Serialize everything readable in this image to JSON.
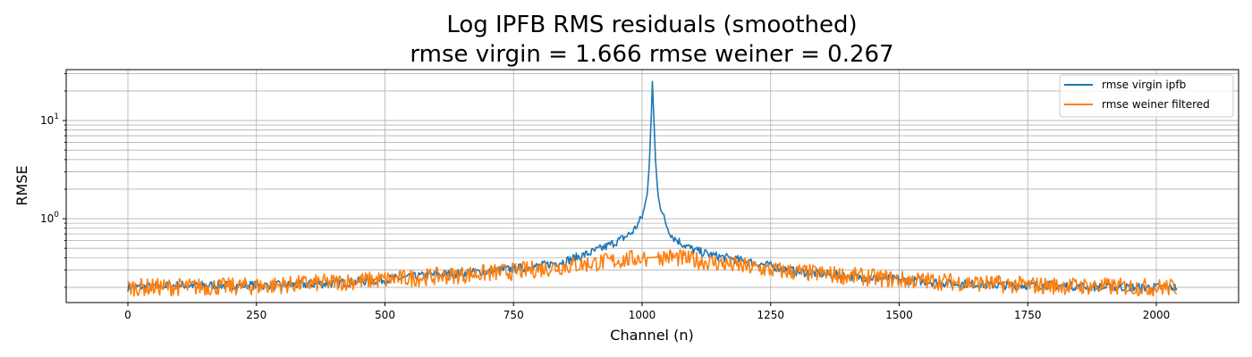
{
  "chart_data": {
    "type": "line",
    "title": "Log IPFB RMS residuals (smoothed)",
    "subtitle": "rmse virgin = 1.666 rmse weiner = 0.267",
    "xlabel": "Channel (n)",
    "ylabel": "RMSE",
    "xlim": [
      -120,
      2160
    ],
    "ylim": [
      0.14,
      33
    ],
    "yscale": "log",
    "grid": true,
    "legend_position": "top-right",
    "x_ticks": [
      0,
      250,
      500,
      750,
      1000,
      1250,
      1500,
      1750,
      2000
    ],
    "x_tick_labels": [
      "0",
      "250",
      "500",
      "750",
      "1000",
      "1250",
      "1500",
      "1750",
      "2000"
    ],
    "y_ticks": [
      1,
      10
    ],
    "y_tick_labels": [
      {
        "base": "10",
        "exp": "0"
      },
      {
        "base": "10",
        "exp": "1"
      }
    ],
    "series": [
      {
        "name": "rmse virgin ipfb",
        "color": "#1f77b4",
        "x": [
          0,
          100,
          200,
          300,
          400,
          500,
          600,
          700,
          800,
          850,
          900,
          930,
          960,
          980,
          990,
          1000,
          1005,
          1010,
          1014,
          1018,
          1020,
          1022,
          1026,
          1030,
          1035,
          1040,
          1050,
          1060,
          1080,
          1100,
          1140,
          1200,
          1250,
          1300,
          1400,
          1500,
          1600,
          1700,
          1800,
          1900,
          2000,
          2040
        ],
        "y": [
          0.2,
          0.21,
          0.21,
          0.21,
          0.22,
          0.24,
          0.27,
          0.29,
          0.33,
          0.37,
          0.45,
          0.52,
          0.62,
          0.72,
          0.85,
          1.05,
          1.3,
          1.8,
          3.5,
          12,
          25,
          14,
          4,
          2,
          1.4,
          1.1,
          0.8,
          0.65,
          0.55,
          0.48,
          0.42,
          0.37,
          0.33,
          0.29,
          0.26,
          0.24,
          0.22,
          0.21,
          0.21,
          0.2,
          0.2,
          0.2
        ]
      },
      {
        "name": "rmse weiner filtered",
        "color": "#ff7f0e",
        "x": [
          0,
          250,
          500,
          750,
          900,
          1000,
          1050,
          1100,
          1250,
          1500,
          1750,
          2000,
          2040
        ],
        "y": [
          0.2,
          0.205,
          0.24,
          0.29,
          0.35,
          0.4,
          0.41,
          0.38,
          0.3,
          0.24,
          0.21,
          0.2,
          0.2
        ],
        "noise_amplitude": 0.09
      }
    ]
  }
}
